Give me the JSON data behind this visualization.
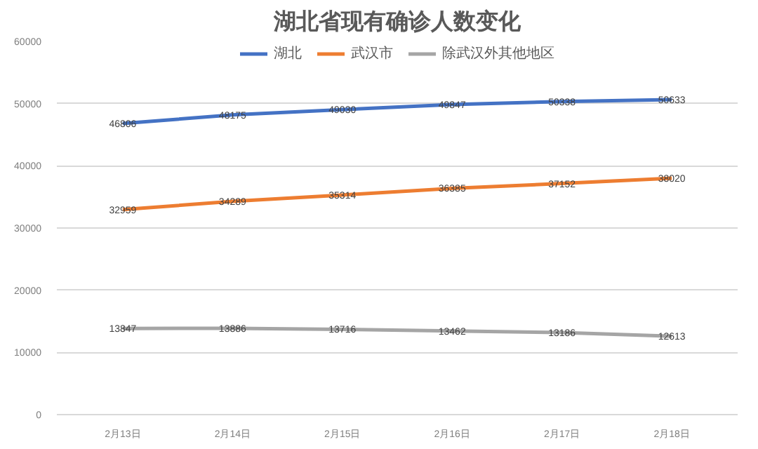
{
  "chart_data": {
    "type": "line",
    "title": "湖北省现有确诊人数变化",
    "categories": [
      "2月13日",
      "2月14日",
      "2月15日",
      "2月16日",
      "2月17日",
      "2月18日"
    ],
    "series": [
      {
        "name": "湖北",
        "color": "#4472c4",
        "values": [
          46806,
          48175,
          49030,
          49847,
          50338,
          50633
        ]
      },
      {
        "name": "武汉市",
        "color": "#ed7d31",
        "values": [
          32959,
          34289,
          35314,
          36385,
          37152,
          38020
        ]
      },
      {
        "name": "除武汉外其他地区",
        "color": "#a5a5a5",
        "values": [
          13847,
          13886,
          13716,
          13462,
          13186,
          12613
        ]
      }
    ],
    "ylim": [
      0,
      60000
    ],
    "yticks": [
      0,
      10000,
      20000,
      30000,
      40000,
      50000,
      60000
    ],
    "grid": "y",
    "legend": "top",
    "data_labels": true,
    "line_style": "solid"
  }
}
